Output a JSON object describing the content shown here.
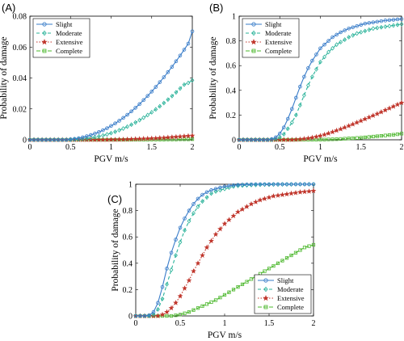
{
  "chart_data": [
    {
      "panel": "(A)",
      "type": "line",
      "xlabel": "PGV  m/s",
      "ylabel": "Probability of damage",
      "xlim": [
        0,
        2
      ],
      "ylim": [
        0,
        0.08
      ],
      "xticks": [
        "0",
        "0.5",
        "1",
        "1.5",
        "2"
      ],
      "yticks": [
        "0",
        "0.02",
        "0.04",
        "0.06",
        "0.08"
      ],
      "legend": "top-left",
      "grid": false,
      "x": [
        0,
        0.05,
        0.1,
        0.15,
        0.2,
        0.25,
        0.3,
        0.35,
        0.4,
        0.45,
        0.5,
        0.55,
        0.6,
        0.65,
        0.7,
        0.75,
        0.8,
        0.85,
        0.9,
        0.95,
        1,
        1.05,
        1.1,
        1.15,
        1.2,
        1.25,
        1.3,
        1.35,
        1.4,
        1.45,
        1.5,
        1.55,
        1.6,
        1.65,
        1.7,
        1.75,
        1.8,
        1.85,
        1.9,
        1.95,
        2
      ],
      "series": [
        {
          "name": "Slight",
          "values": [
            0,
            0,
            0,
            0,
            0,
            0,
            0,
            0,
            0,
            0,
            0.0003,
            0.0006,
            0.001,
            0.0016,
            0.0023,
            0.0031,
            0.004,
            0.005,
            0.0062,
            0.0075,
            0.009,
            0.0106,
            0.0123,
            0.0142,
            0.0162,
            0.0184,
            0.0207,
            0.0231,
            0.0257,
            0.0284,
            0.0312,
            0.0342,
            0.0373,
            0.0405,
            0.0438,
            0.0472,
            0.0508,
            0.0545,
            0.0583,
            0.0622,
            0.0702
          ]
        },
        {
          "name": "Moderate",
          "values": [
            0,
            0,
            0,
            0,
            0,
            0,
            0,
            0,
            0,
            0,
            0,
            0.0002,
            0.0004,
            0.0006,
            0.0009,
            0.0013,
            0.0017,
            0.0022,
            0.0028,
            0.0035,
            0.0043,
            0.0052,
            0.0062,
            0.0073,
            0.0085,
            0.0098,
            0.0112,
            0.0127,
            0.0143,
            0.016,
            0.0178,
            0.0197,
            0.0217,
            0.0238,
            0.026,
            0.0283,
            0.0307,
            0.0332,
            0.0357,
            0.0368,
            0.0385
          ]
        },
        {
          "name": "Extensive",
          "values": [
            0,
            0,
            0,
            0,
            0,
            0,
            0,
            0,
            0,
            0,
            0,
            0,
            0,
            0,
            0,
            0,
            0,
            0,
            0,
            0,
            0.0001,
            0.0001,
            0.0002,
            0.0002,
            0.0003,
            0.0004,
            0.0005,
            0.0006,
            0.0007,
            0.0008,
            0.0009,
            0.001,
            0.0012,
            0.0013,
            0.0015,
            0.0017,
            0.0019,
            0.0021,
            0.0023,
            0.0025,
            0.0027
          ]
        },
        {
          "name": "Complete",
          "values": [
            0,
            0,
            0,
            0,
            0,
            0,
            0,
            0,
            0,
            0,
            0,
            0,
            0,
            0,
            0,
            0,
            0,
            0,
            0,
            0,
            0,
            0,
            0,
            0,
            0,
            0,
            0,
            0,
            0,
            0,
            0.0001,
            0.0001,
            0.0001,
            0.0001,
            0.0002,
            0.0002,
            0.0002,
            0.0003,
            0.0003,
            0.0003,
            0.0004
          ]
        }
      ]
    },
    {
      "panel": "(B)",
      "type": "line",
      "xlabel": "PGV  m/s",
      "ylabel": "Probability of damage",
      "xlim": [
        0,
        2
      ],
      "ylim": [
        0,
        1
      ],
      "xticks": [
        "0",
        "0.5",
        "1",
        "1.5",
        "2"
      ],
      "yticks": [
        "0",
        "0.2",
        "0.4",
        "0.6",
        "0.8",
        "1"
      ],
      "legend": "top-left",
      "grid": false,
      "x": [
        0,
        0.05,
        0.1,
        0.15,
        0.2,
        0.25,
        0.3,
        0.35,
        0.4,
        0.45,
        0.5,
        0.55,
        0.6,
        0.65,
        0.7,
        0.75,
        0.8,
        0.85,
        0.9,
        0.95,
        1,
        1.05,
        1.1,
        1.15,
        1.2,
        1.25,
        1.3,
        1.35,
        1.4,
        1.45,
        1.5,
        1.55,
        1.6,
        1.65,
        1.7,
        1.75,
        1.8,
        1.85,
        1.9,
        1.95,
        2
      ],
      "series": [
        {
          "name": "Slight",
          "values": [
            0,
            0,
            0,
            0,
            0,
            0,
            0,
            0,
            0.005,
            0.02,
            0.05,
            0.1,
            0.17,
            0.25,
            0.34,
            0.43,
            0.51,
            0.58,
            0.64,
            0.69,
            0.74,
            0.77,
            0.8,
            0.83,
            0.85,
            0.87,
            0.885,
            0.9,
            0.91,
            0.92,
            0.93,
            0.94,
            0.945,
            0.95,
            0.955,
            0.96,
            0.965,
            0.968,
            0.971,
            0.974,
            0.977
          ]
        },
        {
          "name": "Moderate",
          "values": [
            0,
            0,
            0,
            0,
            0,
            0,
            0,
            0,
            0,
            0.008,
            0.02,
            0.045,
            0.09,
            0.14,
            0.2,
            0.28,
            0.36,
            0.44,
            0.51,
            0.57,
            0.63,
            0.67,
            0.71,
            0.74,
            0.77,
            0.79,
            0.81,
            0.83,
            0.845,
            0.86,
            0.87,
            0.88,
            0.89,
            0.9,
            0.905,
            0.91,
            0.915,
            0.92,
            0.925,
            0.93,
            0.935
          ]
        },
        {
          "name": "Extensive",
          "values": [
            0,
            0,
            0,
            0,
            0,
            0,
            0,
            0,
            0,
            0,
            0,
            0,
            0,
            0,
            0.002,
            0.004,
            0.008,
            0.012,
            0.018,
            0.025,
            0.033,
            0.042,
            0.052,
            0.063,
            0.075,
            0.087,
            0.1,
            0.113,
            0.126,
            0.14,
            0.154,
            0.168,
            0.182,
            0.196,
            0.21,
            0.225,
            0.24,
            0.255,
            0.27,
            0.285,
            0.3
          ]
        },
        {
          "name": "Complete",
          "values": [
            0,
            0,
            0,
            0,
            0,
            0,
            0,
            0,
            0,
            0,
            0,
            0,
            0,
            0,
            0,
            0,
            0,
            0,
            0,
            0,
            0.001,
            0.002,
            0.003,
            0.004,
            0.005,
            0.007,
            0.009,
            0.011,
            0.013,
            0.015,
            0.017,
            0.02,
            0.023,
            0.026,
            0.029,
            0.032,
            0.035,
            0.038,
            0.041,
            0.045,
            0.05
          ]
        }
      ]
    },
    {
      "panel": "(C)",
      "type": "line",
      "xlabel": "PGV  m/s",
      "ylabel": "Probability of damage",
      "xlim": [
        0,
        2
      ],
      "ylim": [
        0,
        1
      ],
      "xticks": [
        "0",
        "0.5",
        "1",
        "1.5",
        "2"
      ],
      "yticks": [
        "0",
        "0.2",
        "0.4",
        "0.6",
        "0.8",
        "1"
      ],
      "legend": "bottom-right",
      "grid": false,
      "x": [
        0,
        0.05,
        0.1,
        0.15,
        0.2,
        0.25,
        0.3,
        0.35,
        0.4,
        0.45,
        0.5,
        0.55,
        0.6,
        0.65,
        0.7,
        0.75,
        0.8,
        0.85,
        0.9,
        0.95,
        1,
        1.05,
        1.1,
        1.15,
        1.2,
        1.25,
        1.3,
        1.35,
        1.4,
        1.45,
        1.5,
        1.55,
        1.6,
        1.65,
        1.7,
        1.75,
        1.8,
        1.85,
        1.9,
        1.95,
        2
      ],
      "series": [
        {
          "name": "Slight",
          "values": [
            0,
            0,
            0,
            0.005,
            0.03,
            0.1,
            0.22,
            0.36,
            0.48,
            0.58,
            0.67,
            0.74,
            0.8,
            0.85,
            0.89,
            0.92,
            0.94,
            0.955,
            0.965,
            0.975,
            0.983,
            0.988,
            0.992,
            0.995,
            0.997,
            0.998,
            0.999,
            1,
            1,
            1,
            1,
            1,
            1,
            1,
            1,
            1,
            1,
            1,
            1,
            1,
            1
          ]
        },
        {
          "name": "Moderate",
          "values": [
            0,
            0,
            0,
            0,
            0.01,
            0.05,
            0.13,
            0.24,
            0.35,
            0.46,
            0.56,
            0.65,
            0.72,
            0.78,
            0.83,
            0.87,
            0.9,
            0.93,
            0.945,
            0.955,
            0.965,
            0.975,
            0.983,
            0.988,
            0.99,
            0.992,
            0.994,
            0.995,
            0.996,
            0.997,
            0.997,
            0.998,
            0.998,
            0.999,
            0.999,
            0.999,
            1,
            1,
            1,
            1,
            1
          ]
        },
        {
          "name": "Extensive",
          "values": [
            0,
            0,
            0,
            0,
            0,
            0,
            0.01,
            0.03,
            0.06,
            0.1,
            0.15,
            0.21,
            0.27,
            0.34,
            0.4,
            0.46,
            0.52,
            0.57,
            0.62,
            0.66,
            0.7,
            0.73,
            0.76,
            0.79,
            0.81,
            0.83,
            0.85,
            0.865,
            0.88,
            0.89,
            0.9,
            0.91,
            0.915,
            0.92,
            0.925,
            0.93,
            0.935,
            0.94,
            0.943,
            0.946,
            0.95
          ]
        },
        {
          "name": "Complete",
          "values": [
            0,
            0,
            0,
            0,
            0,
            0,
            0,
            0,
            0,
            0.005,
            0.01,
            0.02,
            0.03,
            0.045,
            0.06,
            0.075,
            0.09,
            0.105,
            0.12,
            0.14,
            0.16,
            0.18,
            0.2,
            0.22,
            0.24,
            0.26,
            0.28,
            0.3,
            0.32,
            0.34,
            0.36,
            0.38,
            0.4,
            0.42,
            0.44,
            0.46,
            0.48,
            0.5,
            0.52,
            0.53,
            0.54
          ]
        }
      ]
    }
  ],
  "styles": {
    "Slight": {
      "color": "#3a7dc9",
      "dash": "",
      "marker": "circle"
    },
    "Moderate": {
      "color": "#2bb39a",
      "dash": "4,3",
      "marker": "diamond"
    },
    "Extensive": {
      "color": "#c0362c",
      "dash": "1.5,2",
      "marker": "star"
    },
    "Complete": {
      "color": "#4db82e",
      "dash": "5,2",
      "marker": "square"
    }
  }
}
